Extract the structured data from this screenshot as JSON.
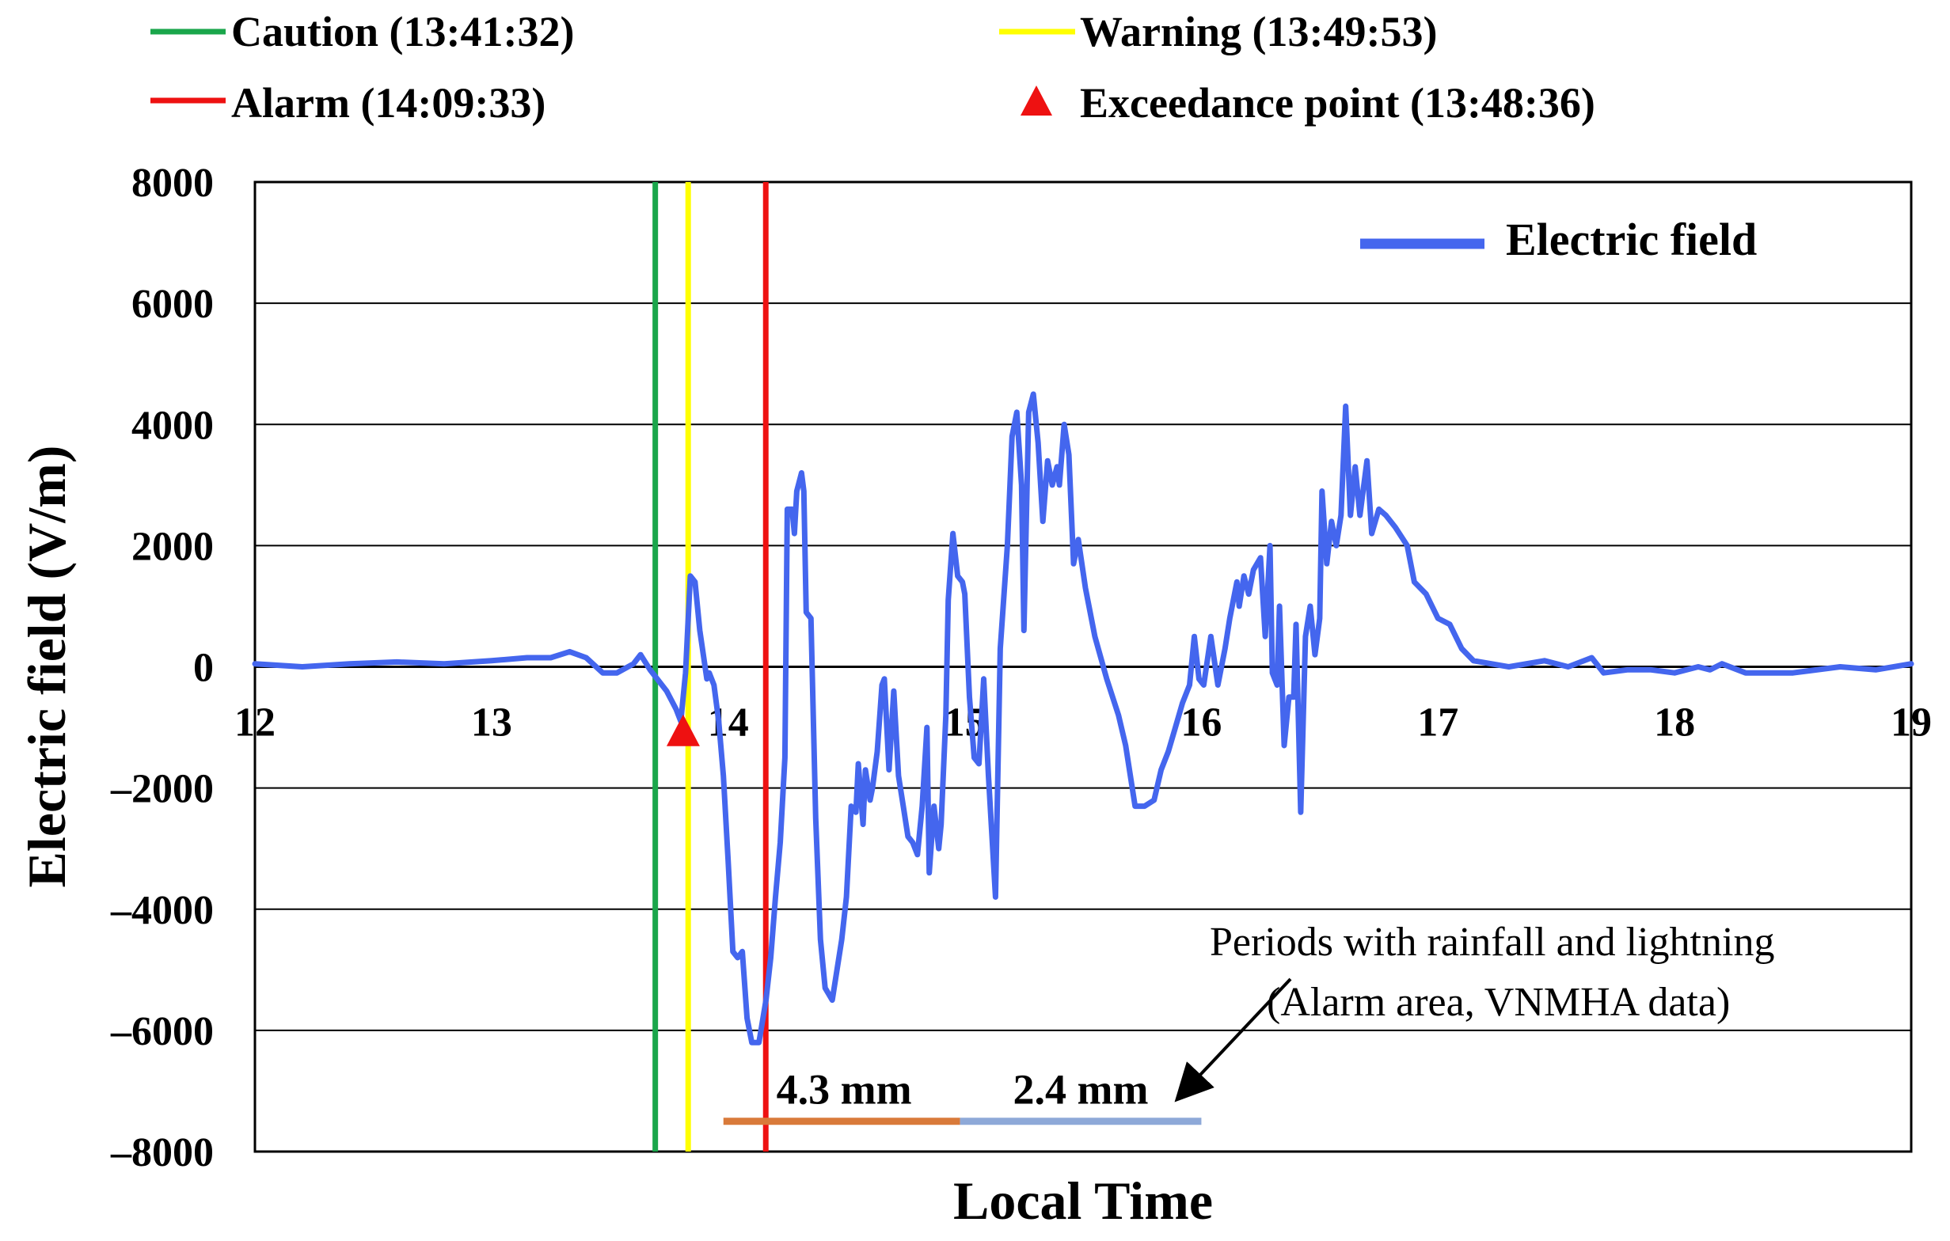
{
  "chart_data": {
    "type": "line",
    "title": "",
    "xlabel": "Local Time",
    "ylabel": "Electric field (V/m)",
    "xlim": [
      12,
      19
    ],
    "ylim": [
      -8000,
      8000
    ],
    "x_ticks": [
      12,
      13,
      14,
      15,
      16,
      17,
      18,
      19
    ],
    "x_tick_labels": [
      "12",
      "13",
      "14",
      "15",
      "16",
      "17",
      "18",
      "19"
    ],
    "y_ticks": [
      8000,
      6000,
      4000,
      2000,
      0,
      -2000,
      -4000,
      -6000,
      -8000
    ],
    "y_tick_labels": [
      "8000",
      "6000",
      "4000",
      "2000",
      "0",
      "–2000",
      "–4000",
      "–6000",
      "–8000"
    ],
    "grid": "horizontal",
    "legend": {
      "position": "top-right",
      "label": "Electric field",
      "color": "#4466ee"
    },
    "series": [
      {
        "name": "Electric field",
        "color": "#4466ee",
        "points": [
          [
            12.0,
            50
          ],
          [
            12.2,
            0
          ],
          [
            12.4,
            50
          ],
          [
            12.6,
            80
          ],
          [
            12.8,
            50
          ],
          [
            13.0,
            100
          ],
          [
            13.15,
            150
          ],
          [
            13.25,
            150
          ],
          [
            13.33,
            250
          ],
          [
            13.4,
            150
          ],
          [
            13.47,
            -100
          ],
          [
            13.53,
            -100
          ],
          [
            13.6,
            50
          ],
          [
            13.63,
            200
          ],
          [
            13.67,
            -50
          ],
          [
            13.7,
            -200
          ],
          [
            13.74,
            -400
          ],
          [
            13.78,
            -700
          ],
          [
            13.8,
            -900
          ],
          [
            13.82,
            -100
          ],
          [
            13.84,
            1500
          ],
          [
            13.86,
            1400
          ],
          [
            13.88,
            600
          ],
          [
            13.91,
            -200
          ],
          [
            13.92,
            -100
          ],
          [
            13.94,
            -300
          ],
          [
            13.96,
            -900
          ],
          [
            13.98,
            -1800
          ],
          [
            14.0,
            -3200
          ],
          [
            14.02,
            -4700
          ],
          [
            14.04,
            -4800
          ],
          [
            14.06,
            -4700
          ],
          [
            14.08,
            -5800
          ],
          [
            14.1,
            -6200
          ],
          [
            14.13,
            -6200
          ],
          [
            14.16,
            -5500
          ],
          [
            14.18,
            -4800
          ],
          [
            14.2,
            -3800
          ],
          [
            14.22,
            -2900
          ],
          [
            14.24,
            -1500
          ],
          [
            14.25,
            2600
          ],
          [
            14.27,
            2600
          ],
          [
            14.28,
            2200
          ],
          [
            14.29,
            2900
          ],
          [
            14.31,
            3200
          ],
          [
            14.32,
            2900
          ],
          [
            14.33,
            900
          ],
          [
            14.35,
            800
          ],
          [
            14.37,
            -2500
          ],
          [
            14.39,
            -4500
          ],
          [
            14.41,
            -5300
          ],
          [
            14.44,
            -5500
          ],
          [
            14.46,
            -5000
          ],
          [
            14.48,
            -4500
          ],
          [
            14.5,
            -3800
          ],
          [
            14.52,
            -2300
          ],
          [
            14.54,
            -2400
          ],
          [
            14.55,
            -1600
          ],
          [
            14.57,
            -2600
          ],
          [
            14.58,
            -1700
          ],
          [
            14.6,
            -2200
          ],
          [
            14.61,
            -2000
          ],
          [
            14.63,
            -1400
          ],
          [
            14.65,
            -300
          ],
          [
            14.66,
            -200
          ],
          [
            14.68,
            -1700
          ],
          [
            14.7,
            -400
          ],
          [
            14.72,
            -1800
          ],
          [
            14.74,
            -2300
          ],
          [
            14.76,
            -2800
          ],
          [
            14.78,
            -2900
          ],
          [
            14.8,
            -3100
          ],
          [
            14.82,
            -2300
          ],
          [
            14.84,
            -1000
          ],
          [
            14.85,
            -3400
          ],
          [
            14.87,
            -2300
          ],
          [
            14.89,
            -3000
          ],
          [
            14.9,
            -2600
          ],
          [
            14.92,
            -800
          ],
          [
            14.93,
            1100
          ],
          [
            14.95,
            2200
          ],
          [
            14.97,
            1500
          ],
          [
            14.99,
            1400
          ],
          [
            15.0,
            1200
          ],
          [
            15.02,
            -500
          ],
          [
            15.04,
            -1500
          ],
          [
            15.06,
            -1600
          ],
          [
            15.08,
            -200
          ],
          [
            15.1,
            -1800
          ],
          [
            15.13,
            -3800
          ],
          [
            15.15,
            300
          ],
          [
            15.18,
            2000
          ],
          [
            15.2,
            3800
          ],
          [
            15.22,
            4200
          ],
          [
            15.24,
            3000
          ],
          [
            15.25,
            600
          ],
          [
            15.27,
            4200
          ],
          [
            15.29,
            4500
          ],
          [
            15.31,
            3700
          ],
          [
            15.33,
            2400
          ],
          [
            15.35,
            3400
          ],
          [
            15.37,
            3000
          ],
          [
            15.39,
            3300
          ],
          [
            15.4,
            3000
          ],
          [
            15.42,
            4000
          ],
          [
            15.44,
            3500
          ],
          [
            15.46,
            1700
          ],
          [
            15.48,
            2100
          ],
          [
            15.51,
            1300
          ],
          [
            15.55,
            500
          ],
          [
            15.6,
            -200
          ],
          [
            15.65,
            -800
          ],
          [
            15.68,
            -1300
          ],
          [
            15.72,
            -2300
          ],
          [
            15.76,
            -2300
          ],
          [
            15.8,
            -2200
          ],
          [
            15.83,
            -1700
          ],
          [
            15.86,
            -1400
          ],
          [
            15.89,
            -1000
          ],
          [
            15.92,
            -600
          ],
          [
            15.95,
            -300
          ],
          [
            15.97,
            500
          ],
          [
            15.99,
            -200
          ],
          [
            16.01,
            -300
          ],
          [
            16.04,
            500
          ],
          [
            16.07,
            -300
          ],
          [
            16.1,
            300
          ],
          [
            16.12,
            800
          ],
          [
            16.15,
            1400
          ],
          [
            16.16,
            1000
          ],
          [
            16.18,
            1500
          ],
          [
            16.2,
            1200
          ],
          [
            16.22,
            1600
          ],
          [
            16.25,
            1800
          ],
          [
            16.27,
            500
          ],
          [
            16.29,
            2000
          ],
          [
            16.3,
            -100
          ],
          [
            16.32,
            -300
          ],
          [
            16.33,
            1000
          ],
          [
            16.35,
            -1300
          ],
          [
            16.37,
            -500
          ],
          [
            16.39,
            -500
          ],
          [
            16.4,
            700
          ],
          [
            16.42,
            -2400
          ],
          [
            16.44,
            500
          ],
          [
            16.46,
            1000
          ],
          [
            16.48,
            200
          ],
          [
            16.5,
            800
          ],
          [
            16.51,
            2900
          ],
          [
            16.53,
            1700
          ],
          [
            16.55,
            2400
          ],
          [
            16.57,
            2000
          ],
          [
            16.59,
            2500
          ],
          [
            16.61,
            4300
          ],
          [
            16.63,
            2500
          ],
          [
            16.65,
            3300
          ],
          [
            16.67,
            2500
          ],
          [
            16.7,
            3400
          ],
          [
            16.72,
            2200
          ],
          [
            16.75,
            2600
          ],
          [
            16.78,
            2500
          ],
          [
            16.82,
            2300
          ],
          [
            16.87,
            2000
          ],
          [
            16.9,
            1400
          ],
          [
            16.95,
            1200
          ],
          [
            17.0,
            800
          ],
          [
            17.05,
            700
          ],
          [
            17.1,
            300
          ],
          [
            17.15,
            100
          ],
          [
            17.3,
            0
          ],
          [
            17.45,
            100
          ],
          [
            17.55,
            0
          ],
          [
            17.65,
            150
          ],
          [
            17.7,
            -100
          ],
          [
            17.8,
            -50
          ],
          [
            17.9,
            -50
          ],
          [
            18.0,
            -100
          ],
          [
            18.1,
            0
          ],
          [
            18.15,
            -50
          ],
          [
            18.2,
            50
          ],
          [
            18.3,
            -100
          ],
          [
            18.5,
            -100
          ],
          [
            18.7,
            0
          ],
          [
            18.85,
            -50
          ],
          [
            19.0,
            50
          ]
        ]
      }
    ],
    "threshold_lines": [
      {
        "name": "Caution",
        "time_label": "13:41:32",
        "x": 13.692,
        "color": "#1aa64b"
      },
      {
        "name": "Warning",
        "time_label": "13:49:53",
        "x": 13.831,
        "color": "#ffff00"
      },
      {
        "name": "Alarm",
        "time_label": "14:09:33",
        "x": 14.159,
        "color": "#ee1111"
      }
    ],
    "exceedance_point": {
      "name": "Exceedance point",
      "time_label": "13:48:36",
      "x": 13.81,
      "y": -1100,
      "color": "#ee1111"
    },
    "legend_entries": [
      {
        "label": "Caution (13:41:32)",
        "color": "#1aa64b",
        "marker": "line"
      },
      {
        "label": "Warning (13:49:53)",
        "color": "#ffff00",
        "marker": "line"
      },
      {
        "label": "Alarm (14:09:33)",
        "color": "#ee1111",
        "marker": "line"
      },
      {
        "label": "Exceedance point (13:48:36)",
        "color": "#ee1111",
        "marker": "triangle"
      }
    ],
    "rainfall_periods": [
      {
        "x_start": 13.98,
        "x_end": 14.98,
        "y": -7500,
        "amount_label": "4.3 mm",
        "color": "#d97a3a"
      },
      {
        "x_start": 14.98,
        "x_end": 16.0,
        "y": -7500,
        "amount_label": "2.4 mm",
        "color": "#8ea9d8"
      }
    ],
    "annotation": {
      "lines": [
        "Periods with rainfall  and lightning",
        "(Alarm  area, VNMHA data)"
      ]
    }
  }
}
